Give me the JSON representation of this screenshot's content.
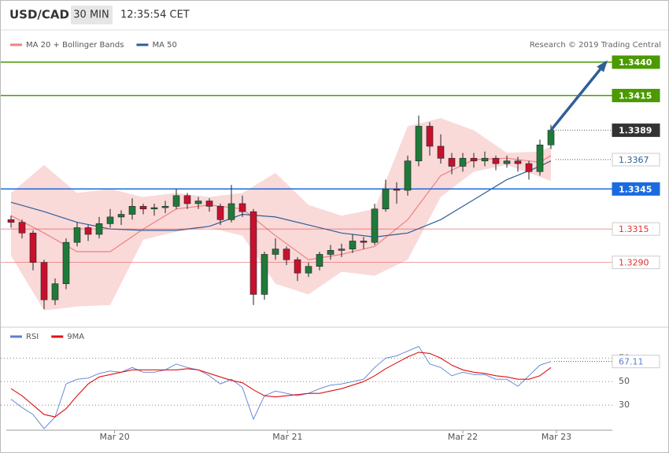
{
  "header": {
    "symbol": "USD/CAD",
    "interval": "30 MIN",
    "time": "12:35:54 CET"
  },
  "chart_data": [
    {
      "type": "candlestick",
      "credit": "Research © 2019 Trading Central",
      "ylim": [
        1.3245,
        1.3463
      ],
      "up_color": "#1f7a3a",
      "down_color": "#c8102e",
      "candles": [
        [
          1.3322,
          1.3325,
          1.3316,
          1.332
        ],
        [
          1.332,
          1.3322,
          1.3308,
          1.3312
        ],
        [
          1.3312,
          1.3314,
          1.3284,
          1.329
        ],
        [
          1.329,
          1.3292,
          1.3255,
          1.3262
        ],
        [
          1.3262,
          1.3278,
          1.3258,
          1.3274
        ],
        [
          1.3274,
          1.3308,
          1.327,
          1.3305
        ],
        [
          1.3305,
          1.332,
          1.3302,
          1.3316
        ],
        [
          1.3316,
          1.3318,
          1.3306,
          1.3311
        ],
        [
          1.3311,
          1.3324,
          1.3308,
          1.3319
        ],
        [
          1.3319,
          1.333,
          1.3316,
          1.3324
        ],
        [
          1.3324,
          1.3329,
          1.3318,
          1.3326
        ],
        [
          1.3326,
          1.3338,
          1.3322,
          1.3332
        ],
        [
          1.3332,
          1.3334,
          1.3326,
          1.333
        ],
        [
          1.333,
          1.3334,
          1.3325,
          1.3331
        ],
        [
          1.3331,
          1.3336,
          1.3327,
          1.3332
        ],
        [
          1.3332,
          1.3345,
          1.333,
          1.334
        ],
        [
          1.334,
          1.3342,
          1.333,
          1.3334
        ],
        [
          1.3334,
          1.3339,
          1.333,
          1.3336
        ],
        [
          1.3336,
          1.3338,
          1.3328,
          1.3332
        ],
        [
          1.3332,
          1.3334,
          1.3318,
          1.3322
        ],
        [
          1.3322,
          1.3348,
          1.332,
          1.3334
        ],
        [
          1.3334,
          1.334,
          1.3324,
          1.3328
        ],
        [
          1.3328,
          1.333,
          1.3258,
          1.3266
        ],
        [
          1.3266,
          1.3298,
          1.3262,
          1.3296
        ],
        [
          1.3296,
          1.3308,
          1.3292,
          1.33
        ],
        [
          1.33,
          1.3302,
          1.3288,
          1.3292
        ],
        [
          1.3292,
          1.3294,
          1.3276,
          1.3282
        ],
        [
          1.3282,
          1.329,
          1.3279,
          1.3287
        ],
        [
          1.3287,
          1.3298,
          1.3284,
          1.3296
        ],
        [
          1.3296,
          1.3303,
          1.3292,
          1.3299
        ],
        [
          1.3299,
          1.3304,
          1.3294,
          1.33
        ],
        [
          1.33,
          1.3311,
          1.3297,
          1.3306
        ],
        [
          1.3306,
          1.3309,
          1.33,
          1.3305
        ],
        [
          1.3305,
          1.3334,
          1.3303,
          1.333
        ],
        [
          1.333,
          1.3352,
          1.3328,
          1.3345
        ],
        [
          1.3345,
          1.335,
          1.3334,
          1.3344
        ],
        [
          1.3344,
          1.337,
          1.334,
          1.3366
        ],
        [
          1.3366,
          1.34,
          1.3362,
          1.3392
        ],
        [
          1.3392,
          1.3395,
          1.337,
          1.3377
        ],
        [
          1.3377,
          1.3386,
          1.3364,
          1.3368
        ],
        [
          1.3368,
          1.3372,
          1.3356,
          1.3362
        ],
        [
          1.3362,
          1.3372,
          1.3358,
          1.3368
        ],
        [
          1.3368,
          1.3372,
          1.3361,
          1.3366
        ],
        [
          1.3366,
          1.3373,
          1.3362,
          1.3368
        ],
        [
          1.3368,
          1.337,
          1.3359,
          1.3364
        ],
        [
          1.3364,
          1.337,
          1.3361,
          1.3366
        ],
        [
          1.3366,
          1.3369,
          1.3358,
          1.3364
        ],
        [
          1.3364,
          1.3366,
          1.3352,
          1.3358
        ],
        [
          1.3358,
          1.3382,
          1.3355,
          1.3378
        ],
        [
          1.3378,
          1.3393,
          1.3375,
          1.3389
        ]
      ],
      "series": [
        {
          "name": "MA 20 + Bollinger Bands",
          "color": "#f08080",
          "x": [
            0,
            3,
            6,
            9,
            12,
            15,
            18,
            21,
            24,
            27,
            30,
            33,
            36,
            39,
            42,
            45,
            48,
            49
          ],
          "values": [
            1.3325,
            1.3312,
            1.3298,
            1.3298,
            1.3315,
            1.333,
            1.3333,
            1.333,
            1.331,
            1.3292,
            1.3296,
            1.3302,
            1.3322,
            1.3355,
            1.3367,
            1.3368,
            1.3365,
            1.337
          ],
          "upper": [
            1.3342,
            1.3363,
            1.3342,
            1.3345,
            1.3339,
            1.3342,
            1.3339,
            1.3342,
            1.3357,
            1.3333,
            1.3325,
            1.333,
            1.3392,
            1.3398,
            1.3389,
            1.3372,
            1.3373,
            1.3377
          ],
          "lower": [
            1.3295,
            1.3254,
            1.3257,
            1.3258,
            1.3307,
            1.3313,
            1.3316,
            1.331,
            1.3274,
            1.3266,
            1.3283,
            1.328,
            1.3292,
            1.3339,
            1.3358,
            1.3363,
            1.3354,
            1.3351
          ]
        },
        {
          "name": "MA 50",
          "color": "#2f5f98",
          "x": [
            0,
            3,
            6,
            9,
            12,
            15,
            18,
            21,
            24,
            27,
            30,
            33,
            36,
            39,
            42,
            45,
            48,
            49
          ],
          "values": [
            1.3335,
            1.3328,
            1.332,
            1.3315,
            1.3314,
            1.3314,
            1.3317,
            1.3326,
            1.3324,
            1.3318,
            1.3312,
            1.3309,
            1.3312,
            1.3322,
            1.3337,
            1.3352,
            1.3362,
            1.3366
          ]
        }
      ],
      "levels": [
        {
          "value": 1.344,
          "label": "1.3440",
          "color": "#4a9a00",
          "line": "solid",
          "label_fill": true
        },
        {
          "value": 1.3415,
          "color": "#4a9a00",
          "line": "solid",
          "label_fill": true
        },
        {
          "value": 1.3389,
          "color": "#333333",
          "line": "dotted",
          "label_fill": true
        },
        {
          "value": 1.3367,
          "color": "#2f5f98",
          "line": "dotted",
          "label_fill": false
        },
        {
          "value": 1.3345,
          "color": "#1a6be0",
          "line": "solid",
          "label_fill": true
        },
        {
          "value": 1.3315,
          "color": "#e03030",
          "line": "solid",
          "label_fill": false
        },
        {
          "value": 1.329,
          "label": "1.3290",
          "color": "#e03030",
          "line": "solid",
          "label_fill": false
        }
      ],
      "arrow": {
        "x": [
          49,
          54
        ],
        "values": [
          1.3389,
          1.344
        ],
        "color": "#2f5f98"
      }
    },
    {
      "type": "line",
      "ylim": [
        10,
        95
      ],
      "yticks": [
        30,
        50,
        70
      ],
      "grid": true,
      "xticks": [
        {
          "value": 9.4,
          "label": "Mar 20"
        },
        {
          "value": 25.1,
          "label": "Mar 21"
        },
        {
          "value": 41,
          "label": "Mar 22"
        },
        {
          "value": 49.5,
          "label": "Mar 23"
        }
      ],
      "series": [
        {
          "name": "RSI",
          "color": "#5b7fd6",
          "values": [
            35,
            28,
            22,
            10,
            20,
            48,
            52,
            53,
            57,
            59,
            58,
            62,
            58,
            58,
            60,
            65,
            62,
            60,
            55,
            48,
            52,
            45,
            18,
            38,
            42,
            40,
            38,
            40,
            44,
            47,
            48,
            50,
            52,
            62,
            70,
            72,
            76,
            80,
            65,
            62,
            55,
            58,
            56,
            56,
            52,
            52,
            46,
            55,
            64,
            67.11
          ]
        },
        {
          "name": "9MA",
          "color": "#e01010",
          "values": [
            44,
            38,
            30,
            22,
            20,
            27,
            38,
            48,
            54,
            56,
            58,
            60,
            60,
            60,
            60,
            60,
            61,
            60,
            57,
            54,
            51,
            49,
            43,
            38,
            37,
            38,
            39,
            40,
            40,
            42,
            44,
            47,
            50,
            55,
            61,
            66,
            71,
            75,
            74,
            70,
            64,
            60,
            58,
            57,
            55,
            54,
            52,
            52,
            55,
            62
          ]
        }
      ]
    }
  ]
}
